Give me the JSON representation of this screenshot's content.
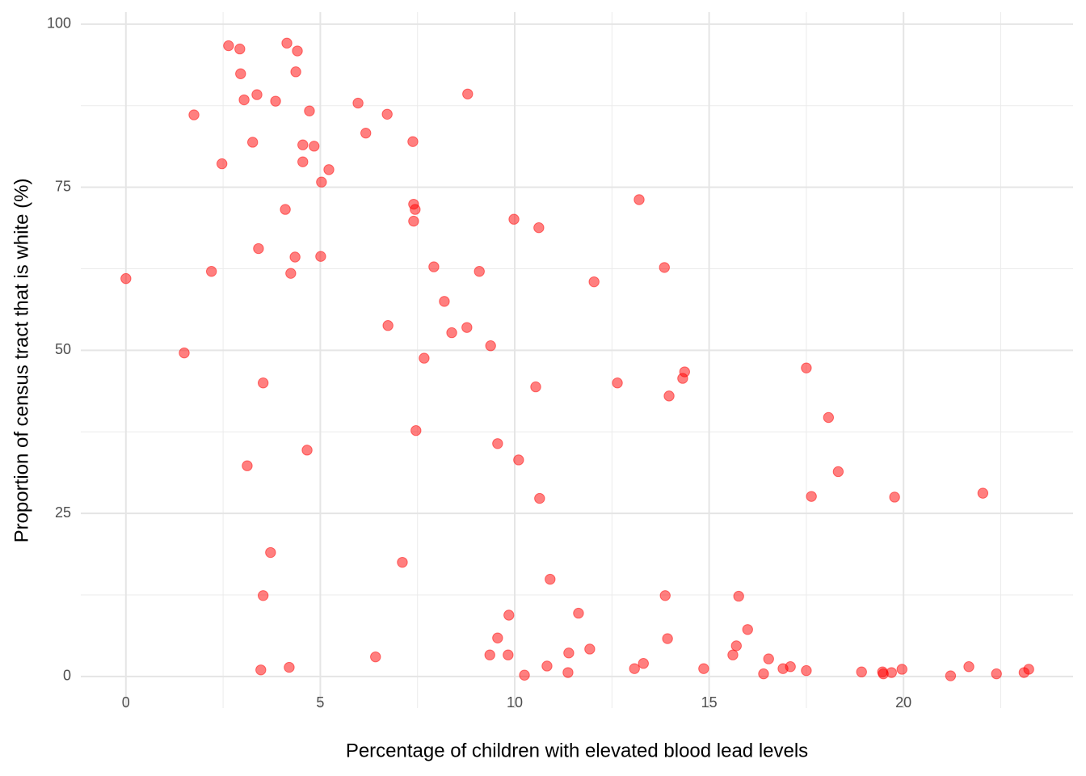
{
  "chart_data": {
    "type": "scatter",
    "x_label": "Percentage of children with elevated blood lead levels",
    "y_label": "Proportion of census tract that is white (%)",
    "color": "#ff0000",
    "xlim": [
      -1.16,
      24.36
    ],
    "ylim": [
      -4.85,
      101.85
    ],
    "xticks": [
      0,
      5,
      10,
      15,
      20
    ],
    "yticks": [
      0,
      25,
      50,
      75,
      100
    ],
    "minor_xticks": [
      2.5,
      7.5,
      12.5,
      17.5,
      22.5
    ],
    "minor_yticks": [
      12.5,
      37.5,
      62.5,
      87.5
    ],
    "grid": true,
    "x": [
      0,
      1.75,
      1.5,
      2.2,
      2.47,
      2.64,
      2.93,
      2.95,
      3.04,
      3.12,
      3.26,
      3.37,
      3.41,
      3.53,
      3.53,
      3.47,
      3.72,
      3.85,
      4.1,
      4.14,
      4.2,
      4.24,
      4.35,
      4.37,
      4.41,
      4.55,
      4.55,
      4.66,
      4.72,
      4.84,
      5.01,
      5.03,
      5.22,
      5.97,
      6.17,
      6.42,
      6.72,
      6.74,
      7.11,
      7.38,
      7.4,
      7.44,
      7.4,
      7.46,
      7.67,
      7.92,
      8.19,
      8.38,
      8.77,
      8.79,
      9.09,
      9.36,
      9.38,
      9.56,
      9.56,
      9.83,
      9.85,
      9.98,
      10.1,
      10.25,
      10.54,
      10.62,
      10.64,
      10.83,
      10.91,
      11.37,
      11.39,
      11.64,
      11.93,
      12.04,
      12.64,
      13.08,
      13.2,
      13.31,
      13.85,
      13.87,
      13.93,
      13.97,
      14.32,
      14.37,
      14.86,
      15.61,
      15.7,
      15.76,
      15.99,
      16.4,
      16.53,
      16.9,
      17.09,
      17.5,
      17.5,
      17.63,
      18.07,
      18.32,
      18.92,
      19.46,
      19.48,
      19.69,
      19.77,
      19.96,
      21.21,
      21.68,
      22.04,
      22.39,
      23.1,
      23.22
    ],
    "values": [
      61.0,
      86.1,
      49.6,
      62.1,
      78.6,
      96.7,
      96.2,
      92.4,
      88.4,
      32.3,
      81.9,
      89.2,
      65.6,
      45.0,
      12.4,
      1.0,
      19.0,
      88.2,
      71.6,
      97.1,
      1.4,
      61.8,
      64.3,
      92.7,
      95.9,
      81.5,
      78.9,
      34.7,
      86.7,
      81.3,
      64.4,
      75.8,
      77.7,
      87.9,
      83.3,
      3.0,
      86.2,
      53.8,
      17.5,
      82.0,
      72.4,
      71.6,
      69.8,
      37.7,
      48.8,
      62.8,
      57.5,
      52.7,
      53.5,
      89.3,
      62.1,
      3.3,
      50.7,
      5.9,
      35.7,
      3.3,
      9.4,
      70.1,
      33.2,
      0.2,
      44.4,
      68.8,
      27.3,
      1.6,
      14.9,
      0.6,
      3.6,
      9.7,
      4.2,
      60.5,
      45.0,
      1.2,
      73.1,
      2.0,
      62.7,
      12.4,
      5.8,
      43.0,
      45.7,
      46.7,
      1.2,
      3.3,
      4.7,
      12.3,
      7.2,
      0.4,
      2.7,
      1.2,
      1.5,
      0.9,
      47.3,
      27.6,
      39.7,
      31.4,
      0.7,
      0.7,
      0.4,
      0.6,
      27.5,
      1.1,
      0.1,
      1.5,
      28.1,
      0.4,
      0.6,
      1.1
    ]
  }
}
